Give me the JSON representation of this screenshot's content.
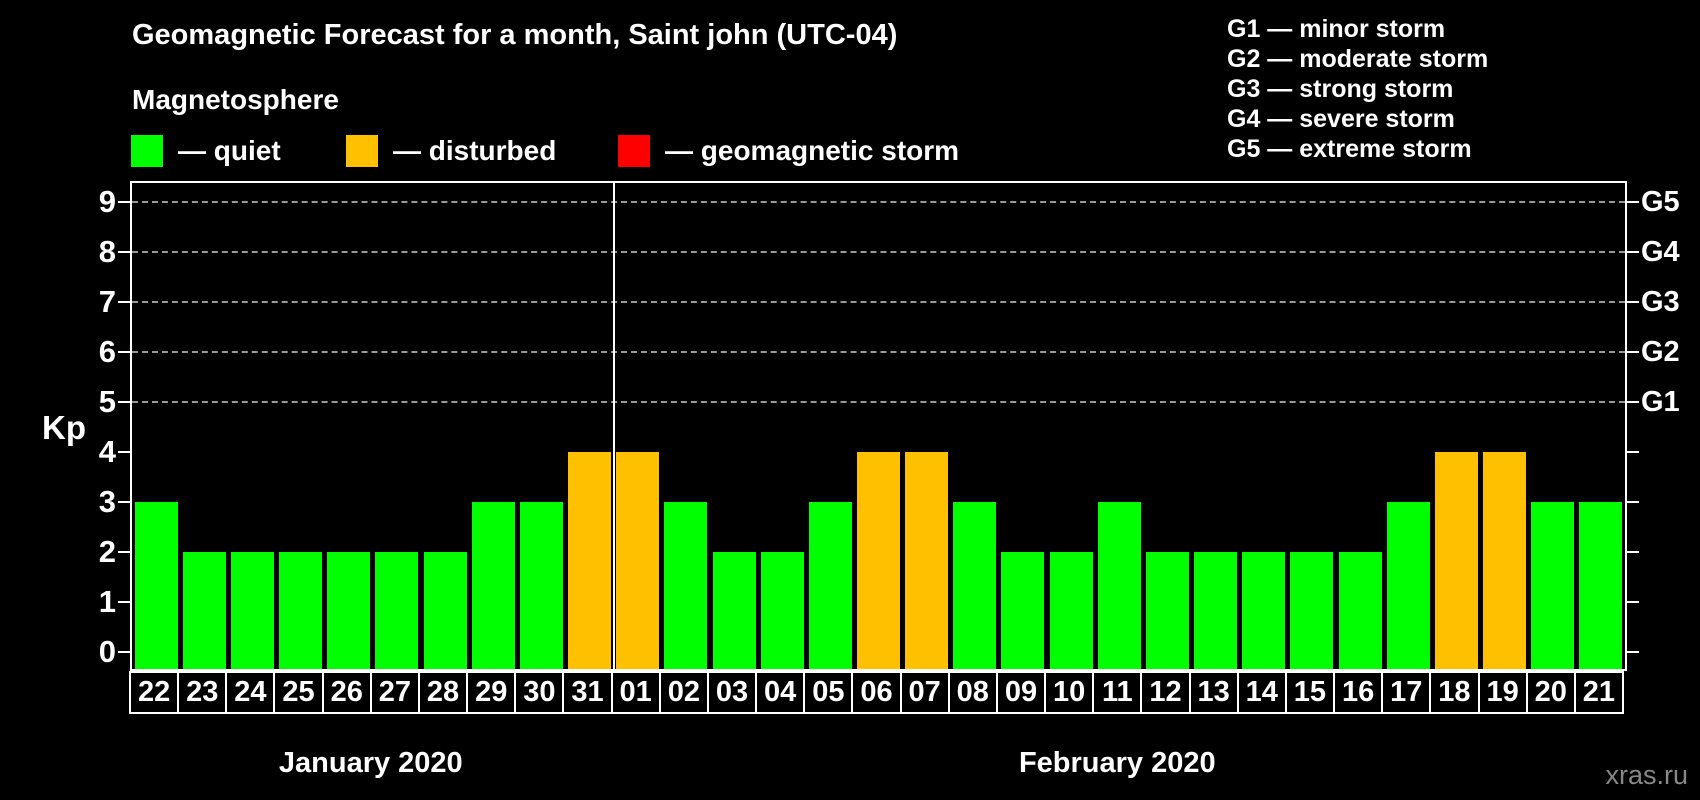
{
  "header": {
    "title": "Geomagnetic Forecast for a month, Saint john (UTC-04)",
    "subtitle": "Magnetosphere",
    "legend": [
      {
        "name": "quiet",
        "label": "— quiet",
        "color": "#00ff00"
      },
      {
        "name": "disturbed",
        "label": "— disturbed",
        "color": "#ffc000"
      },
      {
        "name": "geomagnetic-storm",
        "label": "— geomagnetic storm",
        "color": "#ff0000"
      }
    ],
    "g_scale": [
      "G1 — minor storm",
      "G2 — moderate storm",
      "G3 — strong storm",
      "G4 — severe storm",
      "G5 — extreme storm"
    ]
  },
  "watermark": "xras.ru",
  "chart_data": {
    "type": "bar",
    "title": "Geomagnetic Forecast for a month, Saint john (UTC-04)",
    "xlabel": "",
    "ylabel": "Kp",
    "ylim": [
      0,
      9.4
    ],
    "yticks": [
      0,
      1,
      2,
      3,
      4,
      5,
      6,
      7,
      8,
      9
    ],
    "gridlines_kp": [
      5,
      6,
      7,
      8,
      9
    ],
    "grid": "horizontal dashed gray at Kp 5-9",
    "legend_position": "top-left",
    "right_axis": [
      {
        "kp": 5,
        "label": "G1"
      },
      {
        "kp": 6,
        "label": "G2"
      },
      {
        "kp": 7,
        "label": "G3"
      },
      {
        "kp": 8,
        "label": "G4"
      },
      {
        "kp": 9,
        "label": "G5"
      }
    ],
    "colors": {
      "quiet": "#00ff00",
      "disturbed": "#ffc000",
      "storm": "#ff0000"
    },
    "months": [
      {
        "label": "January 2020",
        "days": 10
      },
      {
        "label": "February 2020",
        "days": 21
      }
    ],
    "bars": [
      {
        "day": "22",
        "kp": 3,
        "state": "quiet"
      },
      {
        "day": "23",
        "kp": 2,
        "state": "quiet"
      },
      {
        "day": "24",
        "kp": 2,
        "state": "quiet"
      },
      {
        "day": "25",
        "kp": 2,
        "state": "quiet"
      },
      {
        "day": "26",
        "kp": 2,
        "state": "quiet"
      },
      {
        "day": "27",
        "kp": 2,
        "state": "quiet"
      },
      {
        "day": "28",
        "kp": 2,
        "state": "quiet"
      },
      {
        "day": "29",
        "kp": 3,
        "state": "quiet"
      },
      {
        "day": "30",
        "kp": 3,
        "state": "quiet"
      },
      {
        "day": "31",
        "kp": 4,
        "state": "disturbed"
      },
      {
        "day": "01",
        "kp": 4,
        "state": "disturbed"
      },
      {
        "day": "02",
        "kp": 3,
        "state": "quiet"
      },
      {
        "day": "03",
        "kp": 2,
        "state": "quiet"
      },
      {
        "day": "04",
        "kp": 2,
        "state": "quiet"
      },
      {
        "day": "05",
        "kp": 3,
        "state": "quiet"
      },
      {
        "day": "06",
        "kp": 4,
        "state": "disturbed"
      },
      {
        "day": "07",
        "kp": 4,
        "state": "disturbed"
      },
      {
        "day": "08",
        "kp": 3,
        "state": "quiet"
      },
      {
        "day": "09",
        "kp": 2,
        "state": "quiet"
      },
      {
        "day": "10",
        "kp": 2,
        "state": "quiet"
      },
      {
        "day": "11",
        "kp": 3,
        "state": "quiet"
      },
      {
        "day": "12",
        "kp": 2,
        "state": "quiet"
      },
      {
        "day": "13",
        "kp": 2,
        "state": "quiet"
      },
      {
        "day": "14",
        "kp": 2,
        "state": "quiet"
      },
      {
        "day": "15",
        "kp": 2,
        "state": "quiet"
      },
      {
        "day": "16",
        "kp": 2,
        "state": "quiet"
      },
      {
        "day": "17",
        "kp": 3,
        "state": "quiet"
      },
      {
        "day": "18",
        "kp": 4,
        "state": "disturbed"
      },
      {
        "day": "19",
        "kp": 4,
        "state": "disturbed"
      },
      {
        "day": "20",
        "kp": 3,
        "state": "quiet"
      },
      {
        "day": "21",
        "kp": 3,
        "state": "quiet"
      }
    ]
  }
}
